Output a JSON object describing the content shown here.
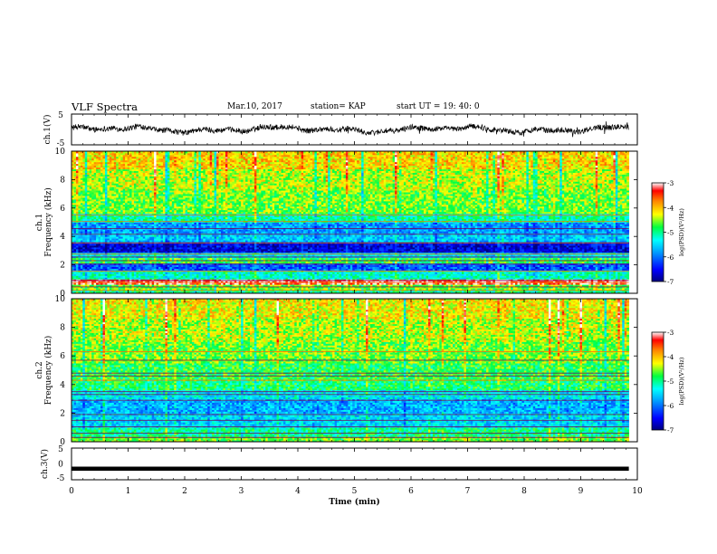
{
  "header": {
    "title": "VLF Spectra",
    "date": "Mar.10, 2017",
    "station": "station= KAP",
    "start": "start  UT =   19: 40: 0"
  },
  "chart_data": [
    {
      "type": "line",
      "panel": "ch1-waveform",
      "ylabel": "ch.1(V)",
      "ylim": [
        -5,
        5
      ],
      "yticks": [
        "5",
        "-5"
      ],
      "xlim": [
        0,
        10
      ],
      "x_start": 0,
      "x_end": 9.85,
      "baseline": 0,
      "amplitude": 1.0,
      "color": "#000000"
    },
    {
      "type": "heatmap",
      "panel": "ch1-spectrogram",
      "ylabel_top": "ch.1",
      "ylabel": "Frequency (kHz)",
      "ylim": [
        0,
        10
      ],
      "yticks": [
        "0",
        "2",
        "4",
        "6",
        "8",
        "10"
      ],
      "xlim": [
        0,
        10
      ],
      "x_end": 9.85,
      "colorbar": {
        "label": "log(PSD)(V²/Hz)",
        "range": [
          -7,
          -3
        ],
        "ticks": [
          "-3",
          "-4",
          "-5",
          "-6",
          "-7"
        ]
      },
      "bands": [
        {
          "from": 0.0,
          "to": 0.3,
          "level": -5.0
        },
        {
          "from": 0.3,
          "to": 0.6,
          "level": -4.6
        },
        {
          "from": 0.6,
          "to": 1.0,
          "level": -3.2
        },
        {
          "from": 1.0,
          "to": 1.6,
          "level": -5.2
        },
        {
          "from": 1.6,
          "to": 2.1,
          "level": -6.1
        },
        {
          "from": 2.1,
          "to": 2.5,
          "level": -4.8
        },
        {
          "from": 2.5,
          "to": 2.9,
          "level": -5.4
        },
        {
          "from": 2.9,
          "to": 3.6,
          "level": -6.6
        },
        {
          "from": 3.6,
          "to": 4.3,
          "level": -5.6
        },
        {
          "from": 4.3,
          "to": 5.0,
          "level": -5.8
        },
        {
          "from": 5.0,
          "to": 5.6,
          "level": -5.1
        },
        {
          "from": 5.6,
          "to": 7.2,
          "level": -4.6
        },
        {
          "from": 7.2,
          "to": 8.8,
          "level": -4.4
        },
        {
          "from": 8.8,
          "to": 10.0,
          "level": -4.1
        }
      ],
      "lines_khz": [
        0.2,
        0.45,
        0.75,
        0.9,
        1.55,
        2.05,
        2.3,
        2.55,
        2.75,
        3.55,
        4.15,
        4.55,
        5.05,
        5.5
      ]
    },
    {
      "type": "heatmap",
      "panel": "ch2-spectrogram",
      "ylabel_top": "ch.2",
      "ylabel": "Frequency (kHz)",
      "ylim": [
        0,
        10
      ],
      "yticks": [
        "0",
        "2",
        "4",
        "6",
        "8",
        "10"
      ],
      "xlim": [
        0,
        10
      ],
      "x_end": 9.85,
      "colorbar": {
        "label": "log(PSD)(V²/Hz)",
        "range": [
          -7,
          -3
        ],
        "ticks": [
          "-3",
          "-4",
          "-5",
          "-6",
          "-7"
        ]
      },
      "bands": [
        {
          "from": 0.0,
          "to": 0.4,
          "level": -4.6
        },
        {
          "from": 0.4,
          "to": 1.0,
          "level": -5.0
        },
        {
          "from": 1.0,
          "to": 2.0,
          "level": -5.5
        },
        {
          "from": 2.0,
          "to": 3.0,
          "level": -5.7
        },
        {
          "from": 3.0,
          "to": 3.6,
          "level": -5.4
        },
        {
          "from": 3.6,
          "to": 4.2,
          "level": -4.9
        },
        {
          "from": 4.2,
          "to": 5.5,
          "level": -4.8
        },
        {
          "from": 5.5,
          "to": 7.0,
          "level": -4.6
        },
        {
          "from": 7.0,
          "to": 8.6,
          "level": -4.4
        },
        {
          "from": 8.6,
          "to": 10.0,
          "level": -4.2
        }
      ],
      "lines_khz": [
        0.3,
        0.6,
        1.05,
        1.5,
        1.9,
        2.9,
        3.3,
        3.5,
        4.3,
        4.6,
        4.8,
        5.7,
        6.3
      ]
    },
    {
      "type": "line",
      "panel": "ch3-waveform",
      "ylabel": "ch.3(V)",
      "ylim": [
        -5,
        5
      ],
      "yticks": [
        "5",
        "0",
        "-5"
      ],
      "xlabel": "Time (min)",
      "xlim": [
        0,
        10
      ],
      "xticks": [
        "0",
        "1",
        "2",
        "3",
        "4",
        "5",
        "6",
        "7",
        "8",
        "9",
        "10"
      ],
      "x_start": 0,
      "x_end": 9.85,
      "constant_value": -1.5,
      "color": "#000000"
    }
  ]
}
